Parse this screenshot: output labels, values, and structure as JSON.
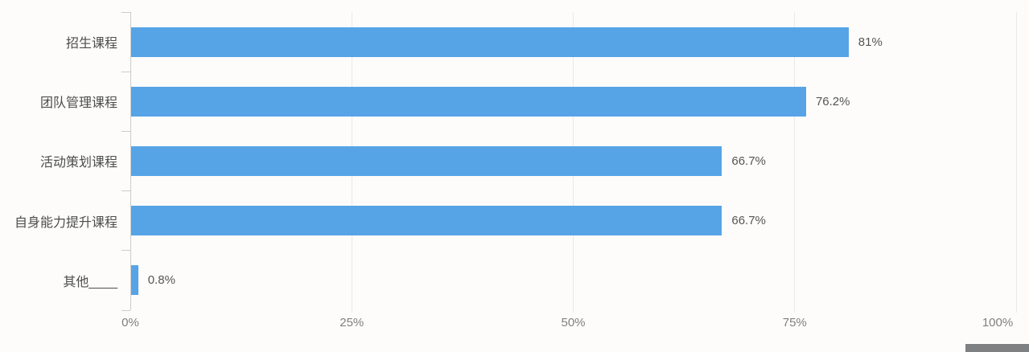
{
  "chart_data": {
    "type": "bar",
    "orientation": "horizontal",
    "title": "",
    "xlabel": "",
    "ylabel": "",
    "categories": [
      "招生课程",
      "团队管理课程",
      "活动策划课程",
      "自身能力提升课程",
      "其他____"
    ],
    "values": [
      81,
      76.2,
      66.7,
      66.7,
      0.8
    ],
    "value_labels": [
      "81%",
      "76.2%",
      "66.7%",
      "66.7%",
      "0.8%"
    ],
    "xlim": [
      0,
      100
    ],
    "x_ticks": [
      {
        "label": "0%",
        "value": 0,
        "offset": 0
      },
      {
        "label": "25%",
        "value": 25,
        "offset": 0
      },
      {
        "label": "50%",
        "value": 50,
        "offset": 0
      },
      {
        "label": "75%",
        "value": 75,
        "offset": 0
      },
      {
        "label": "100%",
        "value": 100,
        "offset": -23
      }
    ],
    "grid": "vertical-only",
    "legend": "none"
  },
  "colors": {
    "bar": "#56a4e6",
    "grid_line": "#e9e9e9",
    "axis_line": "#cccccc",
    "category_label": "#4d4d4d",
    "value_label": "#555555",
    "tick_label": "#7f7f7f",
    "scrollbar_thumb": "#7f8082",
    "background": "#fdfcfb"
  },
  "scrollbar": {
    "present": true
  }
}
